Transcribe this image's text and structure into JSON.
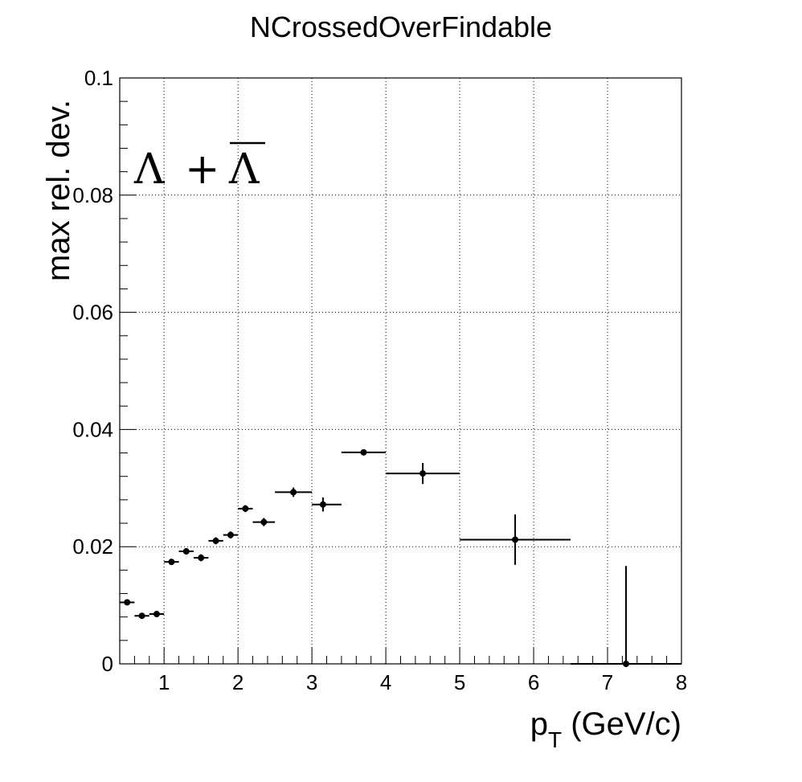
{
  "chart_data": {
    "type": "scatter",
    "title": "NCrossedOverFindable",
    "xlabel_main": "p",
    "xlabel_sub": "T",
    "xlabel_unit": " (GeV/c)",
    "ylabel": "max rel. dev.",
    "annotation": {
      "lambda": "Λ",
      "plus": "+",
      "antilambda": "Λ"
    },
    "xlim": [
      0.4,
      8.0
    ],
    "ylim": [
      0.0,
      0.1
    ],
    "grid": true,
    "x_ticks": [
      1,
      2,
      3,
      4,
      5,
      6,
      7,
      8
    ],
    "x_tick_labels": [
      "1",
      "2",
      "3",
      "4",
      "5",
      "6",
      "7",
      "8"
    ],
    "y_ticks": [
      0,
      0.02,
      0.04,
      0.06,
      0.08,
      0.1
    ],
    "y_tick_labels": [
      "0",
      "0.02",
      "0.04",
      "0.06",
      "0.08",
      "0.1"
    ],
    "series": [
      {
        "points": [
          {
            "x": 0.5,
            "xlo": 0.4,
            "xhi": 0.6,
            "y": 0.0105,
            "yerr": 0.0004
          },
          {
            "x": 0.7,
            "xlo": 0.6,
            "xhi": 0.8,
            "y": 0.0082,
            "yerr": 0.0004
          },
          {
            "x": 0.9,
            "xlo": 0.8,
            "xhi": 1.0,
            "y": 0.0085,
            "yerr": 0.0004
          },
          {
            "x": 1.1,
            "xlo": 1.0,
            "xhi": 1.2,
            "y": 0.0174,
            "yerr": 0.0005
          },
          {
            "x": 1.3,
            "xlo": 1.2,
            "xhi": 1.4,
            "y": 0.0192,
            "yerr": 0.0005
          },
          {
            "x": 1.5,
            "xlo": 1.4,
            "xhi": 1.6,
            "y": 0.0181,
            "yerr": 0.0006
          },
          {
            "x": 1.7,
            "xlo": 1.6,
            "xhi": 1.8,
            "y": 0.021,
            "yerr": 0.0006
          },
          {
            "x": 1.9,
            "xlo": 1.8,
            "xhi": 2.0,
            "y": 0.022,
            "yerr": 0.0006
          },
          {
            "x": 2.1,
            "xlo": 2.0,
            "xhi": 2.2,
            "y": 0.0265,
            "yerr": 0.0006
          },
          {
            "x": 2.35,
            "xlo": 2.2,
            "xhi": 2.5,
            "y": 0.0242,
            "yerr": 0.0007
          },
          {
            "x": 2.75,
            "xlo": 2.5,
            "xhi": 3.0,
            "y": 0.0293,
            "yerr": 0.0008
          },
          {
            "x": 3.15,
            "xlo": 3.0,
            "xhi": 3.4,
            "y": 0.0272,
            "yerr": 0.0012
          },
          {
            "x": 3.7,
            "xlo": 3.4,
            "xhi": 4.0,
            "y": 0.0361,
            "yerr": 0.0003
          },
          {
            "x": 4.5,
            "xlo": 4.0,
            "xhi": 5.0,
            "y": 0.0325,
            "yerr": 0.0018
          },
          {
            "x": 5.75,
            "xlo": 5.0,
            "xhi": 6.5,
            "y": 0.0212,
            "yerr": 0.0043
          },
          {
            "x": 7.25,
            "xlo": 6.5,
            "xhi": 8.0,
            "y": 0.0,
            "yerr": 0.0167
          }
        ]
      }
    ]
  }
}
